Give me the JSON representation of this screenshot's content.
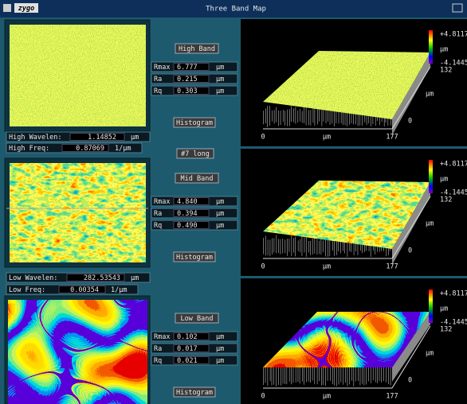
{
  "window": {
    "logo": "zygo",
    "title": "Three Band Map"
  },
  "filter": {
    "high_wavelen_label": "High Wavelen:",
    "high_wavelen": "1.14852",
    "high_wavelen_unit": "µm",
    "high_freq_label": "High Freq:",
    "high_freq": "0.87069",
    "high_freq_unit": "1/µm",
    "low_wavelen_label": "Low Wavelen:",
    "low_wavelen": "282.53543",
    "low_wavelen_unit": "µm",
    "low_freq_label": "Low Freq:",
    "low_freq": "0.00354",
    "low_freq_unit": "1/µm"
  },
  "profile": "#7 long",
  "bands": [
    {
      "name": "High Band",
      "histogram": "Histogram",
      "rows": [
        {
          "label": "Rmax",
          "value": "6.777",
          "unit": "µm"
        },
        {
          "label": "Ra",
          "value": "0.215",
          "unit": "µm"
        },
        {
          "label": "Rq",
          "value": "0.303",
          "unit": "µm"
        }
      ]
    },
    {
      "name": "Mid Band",
      "histogram": "Histogram",
      "rows": [
        {
          "label": "Rmax",
          "value": "4.840",
          "unit": "µm"
        },
        {
          "label": "Ra",
          "value": "0.394",
          "unit": "µm"
        },
        {
          "label": "Rq",
          "value": "0.490",
          "unit": "µm"
        }
      ]
    },
    {
      "name": "Low Band",
      "histogram": "Histogram",
      "rows": [
        {
          "label": "Rmax",
          "value": "0.102",
          "unit": "µm"
        },
        {
          "label": "Ra",
          "value": "0.017",
          "unit": "µm"
        },
        {
          "label": "Rq",
          "value": "0.021",
          "unit": "µm"
        }
      ]
    }
  ],
  "plots": [
    {
      "max": "+4.8117",
      "unit": "µm",
      "min": "-4.1445",
      "count": "132",
      "y_unit": "µm",
      "y_start": "0",
      "x_start": "0",
      "x_unit": "µm",
      "x_end": "177"
    },
    {
      "max": "+4.8117",
      "unit": "µm",
      "min": "-4.1445",
      "count": "132",
      "y_unit": "µm",
      "y_start": "0",
      "x_start": "0",
      "x_unit": "µm",
      "x_end": "177"
    },
    {
      "max": "+4.8117",
      "unit": "µm",
      "min": "-4.1445",
      "count": "132",
      "y_unit": "µm",
      "y_start": "0",
      "x_start": "0",
      "x_unit": "µm",
      "x_end": "177"
    }
  ]
}
